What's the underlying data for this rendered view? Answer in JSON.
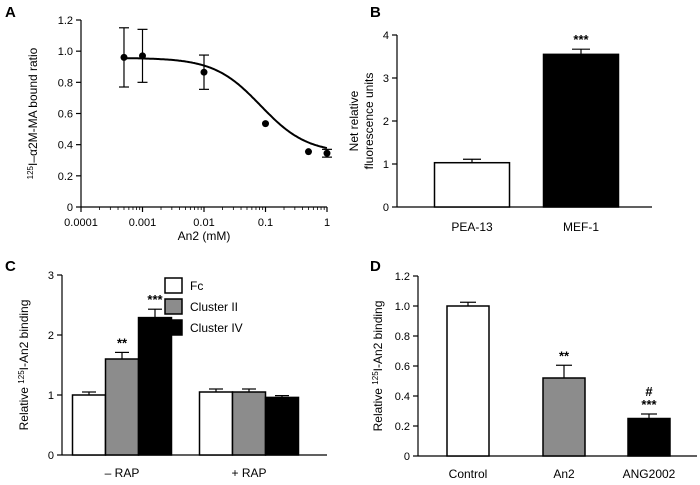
{
  "chart_data": [
    {
      "panel": "A",
      "type": "scatter",
      "title": "",
      "xlabel": "An2 (mM)",
      "ylabel": "125I–α2M-MA bound ratio",
      "ylabel_parts": {
        "sup": "125",
        "main": "I–α2M-MA bound ratio"
      },
      "x_scale": "log",
      "xlim": [
        0.0001,
        1
      ],
      "ylim": [
        0,
        1.2
      ],
      "x_ticks": [
        0.0001,
        0.001,
        0.01,
        0.1,
        1
      ],
      "x_tick_labels": [
        "0.0001",
        "0.001",
        "0.01",
        "0.1",
        "1"
      ],
      "y_ticks": [
        0,
        0.2,
        0.4,
        0.6,
        0.8,
        1.0,
        1.2
      ],
      "y_tick_labels": [
        "0",
        "0.2",
        "0.4",
        "0.6",
        "0.8",
        "1.0",
        "1.2"
      ],
      "points": [
        {
          "x": 0.0005,
          "y": 0.96,
          "err": 0.19
        },
        {
          "x": 0.001,
          "y": 0.97,
          "err": 0.17
        },
        {
          "x": 0.01,
          "y": 0.865,
          "err": 0.11
        },
        {
          "x": 0.1,
          "y": 0.535,
          "err": 0.01
        },
        {
          "x": 0.5,
          "y": 0.355,
          "err": 0.01
        },
        {
          "x": 1,
          "y": 0.345,
          "err": 0.025
        }
      ],
      "fit": {
        "top": 0.957,
        "bottom": 0.345,
        "log_ic50": -1.08,
        "hill": 1.15
      }
    },
    {
      "panel": "B",
      "type": "bar",
      "title": "",
      "xlabel": "",
      "ylabel_lines": [
        "Net relative",
        "fluorescence units"
      ],
      "categories": [
        "PEA-13",
        "MEF-1"
      ],
      "values": [
        1.03,
        3.55
      ],
      "errors": [
        0.08,
        0.12
      ],
      "colors": [
        "#ffffff",
        "#000000"
      ],
      "annotations": [
        "",
        "***"
      ],
      "ylim": [
        0,
        4
      ],
      "y_ticks": [
        0,
        1,
        2,
        3,
        4
      ],
      "y_tick_labels": [
        "0",
        "1",
        "2",
        "3",
        "4"
      ]
    },
    {
      "panel": "C",
      "type": "bar",
      "title": "",
      "xlabel": "",
      "ylabel_parts": {
        "pre": "Relative ",
        "sup": "125",
        "main": "I-An2 binding"
      },
      "categories": [
        "– RAP",
        "+ RAP"
      ],
      "series": [
        {
          "name": "Fc",
          "color": "#ffffff",
          "values": [
            1.0,
            1.05
          ],
          "errors": [
            0.05,
            0.05
          ],
          "annotations": [
            "",
            ""
          ]
        },
        {
          "name": "Cluster II",
          "color": "#8c8c8c",
          "values": [
            1.6,
            1.05
          ],
          "errors": [
            0.11,
            0.05
          ],
          "annotations": [
            "**",
            ""
          ]
        },
        {
          "name": "Cluster IV",
          "color": "#000000",
          "values": [
            2.29,
            0.96
          ],
          "errors": [
            0.14,
            0.03
          ],
          "annotations": [
            "***",
            ""
          ]
        }
      ],
      "legend_position": "top-middle",
      "ylim": [
        0,
        3
      ],
      "y_ticks": [
        0,
        1,
        2,
        3
      ],
      "y_tick_labels": [
        "0",
        "1",
        "2",
        "3"
      ]
    },
    {
      "panel": "D",
      "type": "bar",
      "title": "",
      "xlabel": "",
      "ylabel_parts": {
        "pre": "Relative ",
        "sup": "125",
        "main": "I-An2 binding"
      },
      "categories": [
        "Control",
        "An2",
        "ANG2002"
      ],
      "values": [
        1.0,
        0.52,
        0.25
      ],
      "errors": [
        0.025,
        0.085,
        0.03
      ],
      "colors": [
        "#ffffff",
        "#8c8c8c",
        "#000000"
      ],
      "annotations": [
        "",
        "**",
        "***"
      ],
      "annotations_extra": [
        "",
        "",
        "#"
      ],
      "ylim": [
        0,
        1.2
      ],
      "y_ticks": [
        0,
        0.2,
        0.4,
        0.6,
        0.8,
        1.0,
        1.2
      ],
      "y_tick_labels": [
        "0",
        "0.2",
        "0.4",
        "0.6",
        "0.8",
        "1.0",
        "1.2"
      ]
    }
  ]
}
